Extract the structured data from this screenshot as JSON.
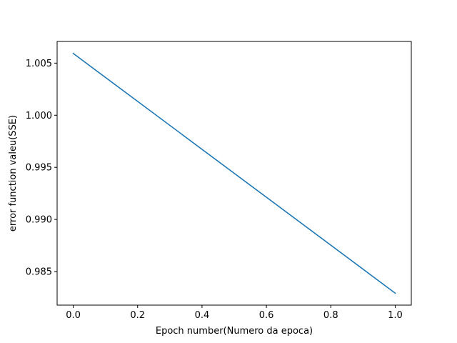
{
  "chart_data": {
    "type": "line",
    "title": "",
    "xlabel": "Epoch number(Numero da epoca)",
    "ylabel": "error function valeu(SSE)",
    "xlim": [
      -0.05,
      1.05
    ],
    "ylim": [
      0.98178,
      1.00708
    ],
    "x_ticks": [
      0.0,
      0.2,
      0.4,
      0.6,
      0.8,
      1.0
    ],
    "x_tick_labels": [
      "0.0",
      "0.2",
      "0.4",
      "0.6",
      "0.8",
      "1.0"
    ],
    "y_ticks": [
      0.985,
      0.99,
      0.995,
      1.0,
      1.005
    ],
    "y_tick_labels": [
      "0.985",
      "0.990",
      "0.995",
      "1.000",
      "1.005"
    ],
    "grid": false,
    "legend": "none",
    "series": [
      {
        "x": [
          0.0,
          1.0
        ],
        "y": [
          1.00593,
          0.98293
        ],
        "color": "#1f77b4"
      }
    ]
  }
}
